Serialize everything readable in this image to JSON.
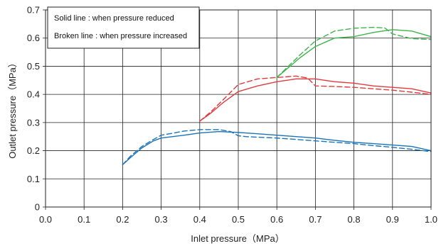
{
  "chart_data": {
    "type": "line",
    "xlabel": "Inlet pressure（MPa）",
    "ylabel": "Outlet pressure（MPa）",
    "xlim": [
      0.0,
      1.0
    ],
    "ylim": [
      0.0,
      0.7
    ],
    "x_ticks": [
      "0.0",
      "0.1",
      "0.2",
      "0.3",
      "0.4",
      "0.5",
      "0.6",
      "0.7",
      "0.8",
      "0.9",
      "1.0"
    ],
    "y_ticks": [
      "0",
      "0.1",
      "0.2",
      "0.3",
      "0.4",
      "0.5",
      "0.6",
      "0.7"
    ],
    "grid": true,
    "legend_position": "top-left",
    "legend": [
      "Solid line : when pressure reduced",
      "Broken line : when pressure increased"
    ],
    "series": [
      {
        "color": "#1a73b8",
        "style": "solid",
        "x": [
          0.2,
          0.22,
          0.25,
          0.28,
          0.3,
          0.33,
          0.36,
          0.4,
          0.45,
          0.5,
          0.55,
          0.6,
          0.65,
          0.7,
          0.75,
          0.8,
          0.85,
          0.9,
          0.95,
          1.0
        ],
        "y": [
          0.15,
          0.175,
          0.21,
          0.235,
          0.245,
          0.25,
          0.255,
          0.263,
          0.268,
          0.265,
          0.26,
          0.255,
          0.25,
          0.245,
          0.237,
          0.23,
          0.225,
          0.22,
          0.215,
          0.2
        ]
      },
      {
        "color": "#1a73b8",
        "style": "dashed",
        "x": [
          0.2,
          0.22,
          0.25,
          0.28,
          0.3,
          0.33,
          0.36,
          0.4,
          0.45,
          0.48,
          0.5,
          0.52,
          0.55,
          0.6,
          0.65,
          0.7,
          0.75,
          0.8,
          0.85,
          0.9,
          0.95,
          1.0
        ],
        "y": [
          0.15,
          0.18,
          0.215,
          0.24,
          0.255,
          0.262,
          0.27,
          0.275,
          0.275,
          0.268,
          0.253,
          0.25,
          0.248,
          0.245,
          0.24,
          0.235,
          0.23,
          0.225,
          0.218,
          0.212,
          0.205,
          0.197
        ]
      },
      {
        "color": "#e03a3e",
        "style": "solid",
        "x": [
          0.4,
          0.43,
          0.46,
          0.5,
          0.55,
          0.6,
          0.65,
          0.7,
          0.75,
          0.8,
          0.85,
          0.9,
          0.95,
          1.0
        ],
        "y": [
          0.305,
          0.335,
          0.37,
          0.41,
          0.43,
          0.445,
          0.455,
          0.455,
          0.445,
          0.44,
          0.43,
          0.425,
          0.42,
          0.405
        ]
      },
      {
        "color": "#e03a3e",
        "style": "dashed",
        "x": [
          0.4,
          0.43,
          0.46,
          0.5,
          0.55,
          0.6,
          0.65,
          0.68,
          0.7,
          0.75,
          0.8,
          0.85,
          0.9,
          0.95,
          1.0
        ],
        "y": [
          0.305,
          0.34,
          0.38,
          0.435,
          0.455,
          0.46,
          0.465,
          0.458,
          0.43,
          0.428,
          0.425,
          0.42,
          0.415,
          0.408,
          0.4
        ]
      },
      {
        "color": "#3cb54a",
        "style": "solid",
        "x": [
          0.6,
          0.63,
          0.66,
          0.7,
          0.75,
          0.8,
          0.85,
          0.9,
          0.95,
          1.0
        ],
        "y": [
          0.46,
          0.495,
          0.53,
          0.57,
          0.6,
          0.605,
          0.62,
          0.63,
          0.625,
          0.605
        ]
      },
      {
        "color": "#3cb54a",
        "style": "dashed",
        "x": [
          0.6,
          0.63,
          0.66,
          0.7,
          0.75,
          0.8,
          0.85,
          0.88,
          0.9,
          0.95,
          1.0
        ],
        "y": [
          0.46,
          0.5,
          0.54,
          0.59,
          0.625,
          0.635,
          0.638,
          0.636,
          0.615,
          0.598,
          0.595
        ]
      }
    ]
  }
}
